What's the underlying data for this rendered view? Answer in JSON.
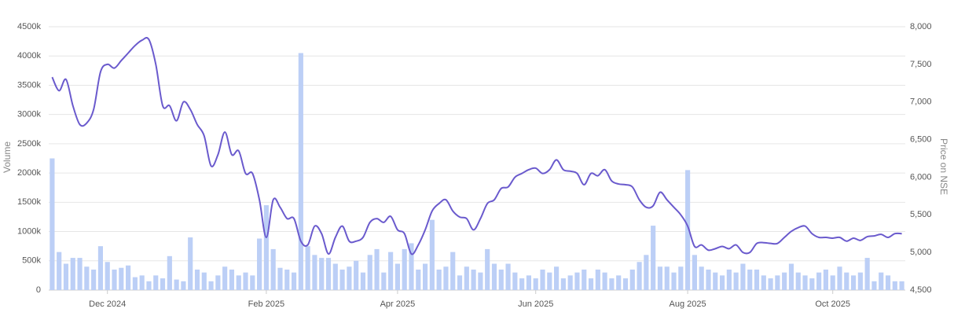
{
  "chart_data": {
    "type": "combo",
    "y_label": "Volume",
    "y2_label": "Price on NSE",
    "grid": true,
    "categories": [
      null,
      null,
      null,
      null,
      null,
      null,
      null,
      null,
      "Dec 2024",
      null,
      null,
      null,
      null,
      null,
      null,
      null,
      null,
      null,
      null,
      null,
      null,
      null,
      null,
      null,
      null,
      null,
      null,
      null,
      null,
      null,
      null,
      "Feb 2025",
      null,
      null,
      null,
      null,
      null,
      null,
      null,
      null,
      null,
      null,
      null,
      null,
      null,
      null,
      null,
      null,
      null,
      null,
      "Apr 2025",
      null,
      null,
      null,
      null,
      null,
      null,
      null,
      null,
      null,
      null,
      null,
      null,
      null,
      null,
      null,
      null,
      null,
      null,
      null,
      "Jun 2025",
      null,
      null,
      null,
      null,
      null,
      null,
      null,
      null,
      null,
      null,
      null,
      null,
      null,
      null,
      null,
      null,
      null,
      null,
      null,
      null,
      null,
      "Aug 2025",
      null,
      null,
      null,
      null,
      null,
      null,
      null,
      null,
      null,
      null,
      null,
      null,
      null,
      null,
      null,
      null,
      null,
      null,
      null,
      null,
      "Oct 2025",
      null,
      null,
      null,
      null,
      null,
      null,
      null,
      null,
      null,
      null
    ],
    "ylim": [
      0,
      4500000
    ],
    "yticks": [
      0,
      {
        "value": 500000,
        "label": "500k"
      },
      {
        "value": 1000000,
        "label": "1000k"
      },
      {
        "value": 1500000,
        "label": "1500k"
      },
      {
        "value": 2000000,
        "label": "2000k"
      },
      {
        "value": 2500000,
        "label": "2500k"
      },
      {
        "value": 3000000,
        "label": "3000k"
      },
      {
        "value": 3500000,
        "label": "3500k"
      },
      {
        "value": 4000000,
        "label": "4000k"
      },
      {
        "value": 4500000,
        "label": "4500k"
      }
    ],
    "y2lim": [
      4500,
      8000
    ],
    "y2ticks": [
      {
        "value": 4500,
        "label": "4,500"
      },
      {
        "value": 5000,
        "label": "5,000"
      },
      {
        "value": 5500,
        "label": "5,500"
      },
      {
        "value": 6000,
        "label": "6,000"
      },
      {
        "value": 6500,
        "label": "6,500"
      },
      {
        "value": 7000,
        "label": "7,000"
      },
      {
        "value": 7500,
        "label": "7,500"
      },
      {
        "value": 8000,
        "label": "8,000"
      }
    ],
    "series": [
      {
        "type": "bar",
        "color": "#bccff6",
        "values": [
          2250000,
          650000,
          450000,
          550000,
          550000,
          400000,
          350000,
          750000,
          480000,
          350000,
          380000,
          420000,
          220000,
          250000,
          150000,
          250000,
          200000,
          580000,
          180000,
          150000,
          900000,
          350000,
          300000,
          150000,
          250000,
          400000,
          350000,
          250000,
          300000,
          250000,
          880000,
          1450000,
          700000,
          380000,
          350000,
          300000,
          4050000,
          750000,
          600000,
          550000,
          550000,
          450000,
          350000,
          400000,
          500000,
          300000,
          600000,
          700000,
          300000,
          650000,
          450000,
          700000,
          800000,
          350000,
          450000,
          1200000,
          350000,
          400000,
          650000,
          250000,
          400000,
          350000,
          300000,
          700000,
          450000,
          350000,
          450000,
          300000,
          200000,
          250000,
          200000,
          350000,
          300000,
          400000,
          200000,
          250000,
          300000,
          350000,
          200000,
          350000,
          300000,
          200000,
          250000,
          200000,
          350000,
          480000,
          600000,
          1100000,
          400000,
          400000,
          300000,
          400000,
          2050000,
          600000,
          400000,
          350000,
          300000,
          250000,
          350000,
          300000,
          450000,
          350000,
          350000,
          250000,
          200000,
          250000,
          300000,
          450000,
          300000,
          250000,
          200000,
          300000,
          350000,
          250000,
          400000,
          300000,
          250000,
          300000,
          550000,
          150000,
          300000,
          250000,
          150000,
          150000
        ]
      },
      {
        "type": "line",
        "axis": "y2",
        "color": "#6a5acd",
        "values": [
          7330,
          7150,
          7300,
          6950,
          6700,
          6720,
          6900,
          7400,
          7500,
          7450,
          7550,
          7650,
          7750,
          7820,
          7830,
          7500,
          6950,
          6950,
          6750,
          7000,
          6900,
          6700,
          6550,
          6150,
          6300,
          6600,
          6300,
          6350,
          6050,
          6050,
          5700,
          5200,
          5700,
          5600,
          5450,
          5450,
          5150,
          5100,
          5350,
          5250,
          4980,
          5200,
          5350,
          5150,
          5150,
          5200,
          5400,
          5450,
          5400,
          5480,
          5300,
          5250,
          4980,
          5100,
          5300,
          5550,
          5650,
          5700,
          5550,
          5470,
          5450,
          5300,
          5450,
          5650,
          5700,
          5850,
          5870,
          6000,
          6050,
          6100,
          6120,
          6050,
          6100,
          6230,
          6100,
          6080,
          6050,
          5900,
          6050,
          6020,
          6100,
          5950,
          5910,
          5900,
          5870,
          5700,
          5600,
          5620,
          5800,
          5700,
          5600,
          5500,
          5350,
          5080,
          5100,
          5030,
          5050,
          5080,
          5050,
          5100,
          5000,
          5000,
          5120,
          5130,
          5120,
          5120,
          5200,
          5280,
          5330,
          5350,
          5250,
          5200,
          5200,
          5190,
          5200,
          5150,
          5190,
          5160,
          5210,
          5220,
          5240,
          5200,
          5250,
          5250
        ]
      }
    ]
  }
}
